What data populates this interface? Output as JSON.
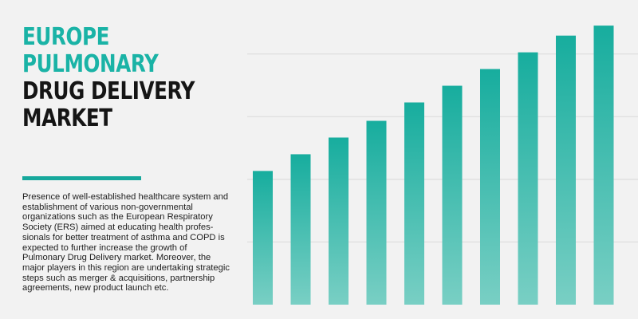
{
  "header": {
    "title_lines_accent": [
      "EUROPE",
      "PULMONARY"
    ],
    "title_lines_dark": [
      "DRUG DELIVERY",
      "MARKET"
    ]
  },
  "description": "Presence of well-established healthcare system and establishment of various non-governmental organizations such as the European Respiratory Society (ERS) aimed at educating health profes-sionals for better treatment of asthma and COPD is expected to further increase the growth of Pulmonary Drug Delivery market. Moreover, the major players in this region are undertaking strategic steps such as merger & acquisitions, partnership agreements, new product launch etc.",
  "colors": {
    "accent": "#1ab3a6",
    "divider": "#17a89c",
    "bar_top": "#17ad9e",
    "bar_bottom": "#79cfc4",
    "gridline": "#d9d9d9",
    "background": "#f2f2f2"
  },
  "chart_data": {
    "type": "bar",
    "values": [
      160,
      180,
      200,
      220,
      242,
      262,
      282,
      302,
      322,
      334
    ],
    "ylim": [
      0,
      336
    ],
    "grid": true,
    "gridlines": [
      75,
      150,
      225,
      300
    ],
    "axis_labels_shown": false,
    "bar_gradient": true
  }
}
